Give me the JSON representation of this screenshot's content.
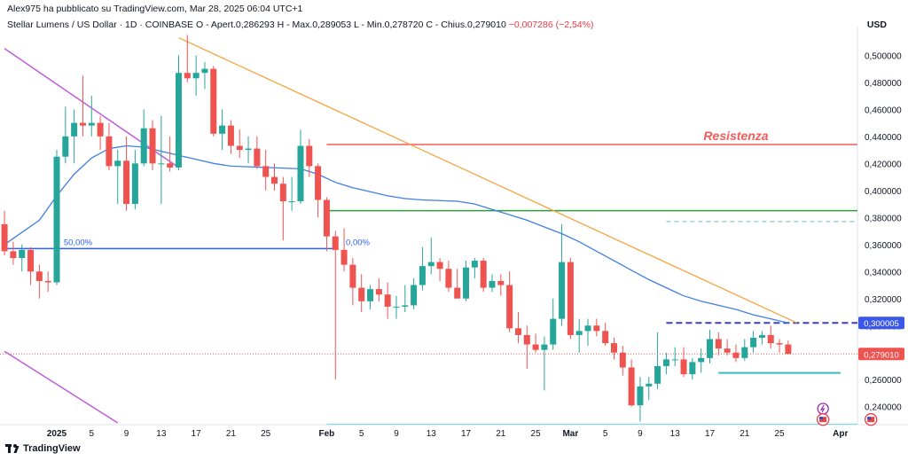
{
  "header": {
    "author": "Alex975 ha pubblicato su TradingView.com, Mar 28, 2025 06:04 UTC+1",
    "symbol": "Stellar Lumens / US Dollar · 1D · COINBASE",
    "ohlc": "O - Apert.0,286293  H - Max.0,289053  L - Min.0,278720  C - Chius.0,279010",
    "change": "−0,007286 (−2,54%)",
    "currency": "USD"
  },
  "footer": {
    "brand": "TradingView"
  },
  "colors": {
    "up": "#26a69a",
    "down": "#ef5350",
    "ma": "#3f7fe6",
    "resistance": "#f25c5c",
    "support": "#2e9c3a",
    "trend": "#f7a440",
    "channel": "#c05be0",
    "fib": "#2962ff"
  },
  "chart_data": {
    "type": "candlestick",
    "title": "Stellar Lumens / US Dollar · 1D · COINBASE",
    "currency": "USD",
    "ylim": [
      0.228,
      0.516
    ],
    "y_ticks": [
      "0,240000",
      "0,260000",
      "0,280000",
      "0,300000",
      "0,320000",
      "0,340000",
      "0,360000",
      "0,380000",
      "0,400000",
      "0,420000",
      "0,440000",
      "0,460000",
      "0,480000",
      "0,500000"
    ],
    "x_tick_labels": [
      {
        "label": "2025",
        "day": 0,
        "bold": true
      },
      {
        "label": "5",
        "day": 4
      },
      {
        "label": "9",
        "day": 8
      },
      {
        "label": "13",
        "day": 12
      },
      {
        "label": "17",
        "day": 16
      },
      {
        "label": "21",
        "day": 20
      },
      {
        "label": "25",
        "day": 24
      },
      {
        "label": "Feb",
        "day": 31,
        "bold": true
      },
      {
        "label": "5",
        "day": 35
      },
      {
        "label": "9",
        "day": 39
      },
      {
        "label": "13",
        "day": 43
      },
      {
        "label": "17",
        "day": 47
      },
      {
        "label": "21",
        "day": 51
      },
      {
        "label": "25",
        "day": 55
      },
      {
        "label": "Mar",
        "day": 59,
        "bold": true
      },
      {
        "label": "5",
        "day": 63
      },
      {
        "label": "9",
        "day": 67
      },
      {
        "label": "13",
        "day": 71
      },
      {
        "label": "17",
        "day": 75
      },
      {
        "label": "21",
        "day": 79
      },
      {
        "label": "25",
        "day": 83
      },
      {
        "label": "Apr",
        "day": 90,
        "bold": true
      }
    ],
    "candles": [
      [
        -6,
        0.375,
        0.385,
        0.352,
        0.355
      ],
      [
        -5,
        0.355,
        0.362,
        0.345,
        0.35
      ],
      [
        -4,
        0.35,
        0.36,
        0.34,
        0.356
      ],
      [
        -3,
        0.356,
        0.358,
        0.33,
        0.34
      ],
      [
        -2,
        0.34,
        0.345,
        0.32,
        0.333
      ],
      [
        -1,
        0.333,
        0.34,
        0.325,
        0.332
      ],
      [
        0,
        0.332,
        0.43,
        0.33,
        0.425
      ],
      [
        1,
        0.425,
        0.462,
        0.42,
        0.44
      ],
      [
        2,
        0.44,
        0.46,
        0.42,
        0.45
      ],
      [
        3,
        0.45,
        0.485,
        0.44,
        0.448
      ],
      [
        4,
        0.448,
        0.47,
        0.44,
        0.45
      ],
      [
        5,
        0.45,
        0.455,
        0.43,
        0.44
      ],
      [
        6,
        0.44,
        0.45,
        0.415,
        0.418
      ],
      [
        7,
        0.418,
        0.43,
        0.39,
        0.422
      ],
      [
        8,
        0.422,
        0.44,
        0.385,
        0.39
      ],
      [
        9,
        0.39,
        0.43,
        0.386,
        0.42
      ],
      [
        10,
        0.42,
        0.46,
        0.418,
        0.446
      ],
      [
        11,
        0.446,
        0.452,
        0.415,
        0.42
      ],
      [
        12,
        0.42,
        0.455,
        0.39,
        0.42
      ],
      [
        13,
        0.42,
        0.44,
        0.414,
        0.417
      ],
      [
        14,
        0.417,
        0.5,
        0.415,
        0.487
      ],
      [
        15,
        0.487,
        0.515,
        0.48,
        0.483
      ],
      [
        16,
        0.483,
        0.5,
        0.47,
        0.487
      ],
      [
        17,
        0.487,
        0.495,
        0.475,
        0.49
      ],
      [
        18,
        0.49,
        0.492,
        0.44,
        0.442
      ],
      [
        19,
        0.442,
        0.46,
        0.43,
        0.448
      ],
      [
        20,
        0.448,
        0.452,
        0.427,
        0.433
      ],
      [
        21,
        0.433,
        0.445,
        0.424,
        0.43
      ],
      [
        22,
        0.43,
        0.44,
        0.42,
        0.431
      ],
      [
        23,
        0.431,
        0.44,
        0.416,
        0.418
      ],
      [
        24,
        0.418,
        0.43,
        0.4,
        0.41
      ],
      [
        25,
        0.41,
        0.42,
        0.4,
        0.405
      ],
      [
        26,
        0.405,
        0.41,
        0.363,
        0.392
      ],
      [
        27,
        0.392,
        0.41,
        0.385,
        0.392
      ],
      [
        28,
        0.392,
        0.445,
        0.39,
        0.433
      ],
      [
        29,
        0.433,
        0.438,
        0.41,
        0.418
      ],
      [
        30,
        0.418,
        0.42,
        0.38,
        0.393
      ],
      [
        31,
        0.393,
        0.395,
        0.355,
        0.366
      ],
      [
        32,
        0.366,
        0.37,
        0.26,
        0.356
      ],
      [
        33,
        0.356,
        0.372,
        0.34,
        0.345
      ],
      [
        34,
        0.345,
        0.35,
        0.315,
        0.328
      ],
      [
        35,
        0.328,
        0.338,
        0.31,
        0.318
      ],
      [
        36,
        0.318,
        0.33,
        0.312,
        0.327
      ],
      [
        37,
        0.327,
        0.335,
        0.318,
        0.323
      ],
      [
        38,
        0.323,
        0.332,
        0.305,
        0.314
      ],
      [
        39,
        0.314,
        0.322,
        0.305,
        0.314
      ],
      [
        40,
        0.314,
        0.33,
        0.31,
        0.315
      ],
      [
        41,
        0.315,
        0.335,
        0.312,
        0.33
      ],
      [
        42,
        0.33,
        0.358,
        0.326,
        0.344
      ],
      [
        43,
        0.344,
        0.365,
        0.338,
        0.347
      ],
      [
        44,
        0.347,
        0.35,
        0.333,
        0.342
      ],
      [
        45,
        0.342,
        0.348,
        0.325,
        0.328
      ],
      [
        46,
        0.328,
        0.342,
        0.322,
        0.32
      ],
      [
        47,
        0.32,
        0.348,
        0.318,
        0.343
      ],
      [
        48,
        0.343,
        0.35,
        0.335,
        0.348
      ],
      [
        49,
        0.348,
        0.35,
        0.325,
        0.328
      ],
      [
        50,
        0.328,
        0.338,
        0.325,
        0.333
      ],
      [
        51,
        0.333,
        0.338,
        0.322,
        0.33
      ],
      [
        52,
        0.33,
        0.34,
        0.295,
        0.298
      ],
      [
        53,
        0.298,
        0.31,
        0.287,
        0.293
      ],
      [
        54,
        0.293,
        0.3,
        0.268,
        0.286
      ],
      [
        55,
        0.286,
        0.294,
        0.28,
        0.282
      ],
      [
        56,
        0.282,
        0.292,
        0.252,
        0.286
      ],
      [
        57,
        0.286,
        0.32,
        0.282,
        0.305
      ],
      [
        58,
        0.305,
        0.375,
        0.3,
        0.347
      ],
      [
        59,
        0.347,
        0.35,
        0.29,
        0.293
      ],
      [
        60,
        0.293,
        0.305,
        0.28,
        0.296
      ],
      [
        61,
        0.296,
        0.305,
        0.285,
        0.3
      ],
      [
        62,
        0.3,
        0.305,
        0.292,
        0.296
      ],
      [
        63,
        0.296,
        0.302,
        0.285,
        0.287
      ],
      [
        64,
        0.287,
        0.291,
        0.275,
        0.28
      ],
      [
        65,
        0.28,
        0.285,
        0.263,
        0.269
      ],
      [
        66,
        0.269,
        0.275,
        0.24,
        0.241
      ],
      [
        67,
        0.241,
        0.262,
        0.229,
        0.255
      ],
      [
        68,
        0.255,
        0.262,
        0.245,
        0.257
      ],
      [
        69,
        0.257,
        0.295,
        0.253,
        0.27
      ],
      [
        70,
        0.27,
        0.28,
        0.264,
        0.275
      ],
      [
        71,
        0.275,
        0.284,
        0.27,
        0.275
      ],
      [
        72,
        0.275,
        0.284,
        0.262,
        0.264
      ],
      [
        73,
        0.264,
        0.276,
        0.26,
        0.273
      ],
      [
        74,
        0.273,
        0.283,
        0.265,
        0.276
      ],
      [
        75,
        0.276,
        0.297,
        0.272,
        0.29
      ],
      [
        76,
        0.29,
        0.295,
        0.278,
        0.283
      ],
      [
        77,
        0.283,
        0.29,
        0.278,
        0.28
      ],
      [
        78,
        0.28,
        0.286,
        0.273,
        0.276
      ],
      [
        79,
        0.276,
        0.29,
        0.274,
        0.284
      ],
      [
        80,
        0.284,
        0.296,
        0.28,
        0.291
      ],
      [
        81,
        0.291,
        0.296,
        0.286,
        0.293
      ],
      [
        82,
        0.293,
        0.3,
        0.283,
        0.287
      ],
      [
        83,
        0.287,
        0.29,
        0.28,
        0.286
      ],
      [
        84,
        0.286,
        0.289,
        0.279,
        0.279
      ]
    ],
    "moving_average": [
      [
        -6,
        0.36
      ],
      [
        -2,
        0.378
      ],
      [
        0,
        0.396
      ],
      [
        2,
        0.412
      ],
      [
        4,
        0.424
      ],
      [
        6,
        0.431
      ],
      [
        8,
        0.433
      ],
      [
        10,
        0.432
      ],
      [
        12,
        0.429
      ],
      [
        14,
        0.426
      ],
      [
        16,
        0.423
      ],
      [
        18,
        0.42
      ],
      [
        20,
        0.418
      ],
      [
        24,
        0.417
      ],
      [
        28,
        0.416
      ],
      [
        30,
        0.412
      ],
      [
        32,
        0.406
      ],
      [
        34,
        0.402
      ],
      [
        36,
        0.399
      ],
      [
        38,
        0.396
      ],
      [
        40,
        0.394
      ],
      [
        42,
        0.393
      ],
      [
        46,
        0.392
      ],
      [
        48,
        0.39
      ],
      [
        50,
        0.386
      ],
      [
        52,
        0.382
      ],
      [
        54,
        0.378
      ],
      [
        56,
        0.373
      ],
      [
        58,
        0.368
      ],
      [
        60,
        0.362
      ],
      [
        62,
        0.355
      ],
      [
        64,
        0.348
      ],
      [
        66,
        0.341
      ],
      [
        68,
        0.334
      ],
      [
        70,
        0.328
      ],
      [
        72,
        0.322
      ],
      [
        74,
        0.318
      ],
      [
        76,
        0.315
      ],
      [
        78,
        0.312
      ],
      [
        80,
        0.308
      ],
      [
        82,
        0.305
      ],
      [
        84,
        0.302
      ]
    ],
    "levels": {
      "resistance": {
        "label": "Resistenza",
        "value": 0.434,
        "from_day": 31
      },
      "support_green": {
        "value": 0.385,
        "from_day": 31
      },
      "fib_50": {
        "label": "50,00%",
        "value": 0.357
      },
      "fib_0": {
        "label": "0,00%",
        "value": 0.357
      },
      "level_0300": {
        "value": 0.302,
        "from_day": 70,
        "to_day": 86
      },
      "cyan_upper": {
        "value": 0.377,
        "from_day": 70
      },
      "cyan_support": {
        "value": 0.265,
        "from_day": 76,
        "to_day": 90
      },
      "cyan_bottom": {
        "value": 0.227,
        "from_day": 31
      },
      "last_close": {
        "value": 0.279
      }
    },
    "trendline": {
      "from": [
        14,
        0.513
      ],
      "to": [
        85,
        0.302
      ]
    },
    "channel_lines": [
      {
        "from": [
          -6,
          0.505
        ],
        "to": [
          14,
          0.417
        ]
      },
      {
        "from": [
          -6,
          0.281
        ],
        "to": [
          7,
          0.228
        ]
      }
    ],
    "price_labels": [
      {
        "text": "0,300005",
        "value": 0.302,
        "color": "#3a57e8"
      },
      {
        "text": "0,279010",
        "value": 0.279,
        "color": "#ef5350"
      }
    ]
  }
}
